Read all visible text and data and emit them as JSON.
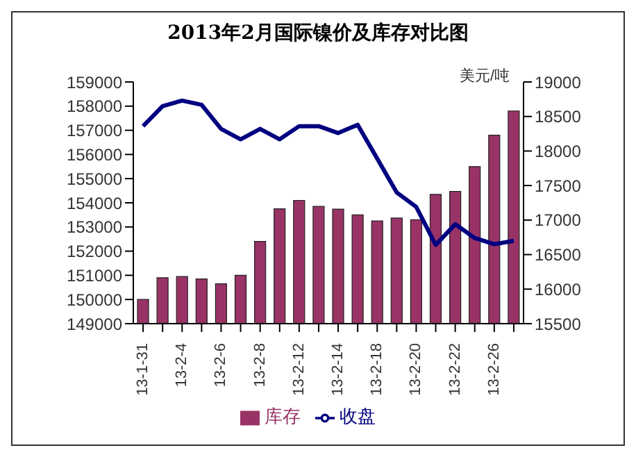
{
  "chart_data": {
    "type": "bar",
    "title": "2013年2月国际镍价及库存对比图",
    "y2label": "美元/吨",
    "categories": [
      "13-1-31",
      null,
      "13-2-4",
      null,
      "13-2-6",
      null,
      "13-2-8",
      null,
      "13-2-12",
      null,
      "13-2-14",
      null,
      "13-2-18",
      null,
      "13-2-20",
      null,
      "13-2-22",
      null,
      "13-2-26",
      null
    ],
    "series": [
      {
        "name": "库存",
        "color": "#993366",
        "values": [
          150000,
          150900,
          150950,
          150850,
          150650,
          151000,
          152400,
          153750,
          154100,
          153850,
          153740,
          153500,
          153250,
          153370,
          153300,
          154350,
          154470,
          155500,
          156800,
          157800
        ]
      },
      {
        "name": "收盘",
        "type": "line",
        "axis": "y2",
        "color": "#000080",
        "values": [
          18360,
          18650,
          18730,
          18670,
          18320,
          18170,
          18320,
          18170,
          18360,
          18360,
          18260,
          18380,
          17890,
          17400,
          17190,
          16640,
          16940,
          16740,
          16650,
          16700
        ]
      }
    ],
    "ylim": [
      149000,
      159000
    ],
    "yticks": [
      149000,
      150000,
      151000,
      152000,
      153000,
      154000,
      155000,
      156000,
      157000,
      158000,
      159000
    ],
    "y2lim": [
      15500,
      19000
    ],
    "y2ticks": [
      15500,
      16000,
      16500,
      17000,
      17500,
      18000,
      18500,
      19000
    ],
    "grid": false,
    "legend": "bottom",
    "marker": "none"
  }
}
